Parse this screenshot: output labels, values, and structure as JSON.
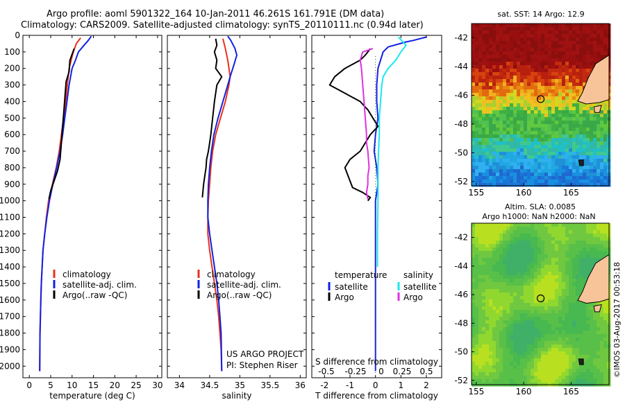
{
  "header": {
    "title": "Argo profile: aoml 5901322_164 10-Jan-2011 46.261S 161.791E (DM data)",
    "subtitle": "Climatology: CARS2009. Satellite-adjusted climatology: synTS_20110111.nc (0.94d later)"
  },
  "colors": {
    "climatology": "#e8301e",
    "satellite": "#1020e0",
    "argo": "#000000",
    "sat_salinity": "#18e8f0",
    "argo_salinity": "#e030e0"
  },
  "chart_data": [
    {
      "type": "line",
      "name": "temperature profile",
      "xlabel": "temperature (deg C)",
      "ylabel": "",
      "xlim": [
        -1.5,
        31
      ],
      "ylim": [
        2070,
        0
      ],
      "xticks": [
        0,
        5,
        10,
        15,
        20,
        25,
        30
      ],
      "yticks": [
        0,
        100,
        200,
        300,
        400,
        500,
        600,
        700,
        800,
        900,
        1000,
        1100,
        1200,
        1300,
        1400,
        1500,
        1600,
        1700,
        1800,
        1900,
        2000
      ],
      "legend": [
        "climatology",
        "satellite-adj. clim.",
        "Argo(..raw -QC)"
      ],
      "series": [
        {
          "name": "climatology",
          "color": "#e8301e",
          "x": [
            12,
            11,
            10.3,
            9.8,
            9.3,
            8.9,
            8.5,
            8,
            7.5,
            7,
            6.3,
            5.4,
            4.5,
            4,
            3.6,
            3.2,
            3,
            2.8,
            2.7,
            2.6,
            2.5,
            2.4
          ],
          "y": [
            15,
            50,
            100,
            150,
            200,
            300,
            400,
            500,
            600,
            700,
            800,
            900,
            1000,
            1100,
            1200,
            1300,
            1400,
            1500,
            1600,
            1700,
            1800,
            2030
          ]
        },
        {
          "name": "satellite-adj. clim.",
          "color": "#1020e0",
          "x": [
            14.5,
            13.8,
            12.8,
            11.5,
            10.8,
            10,
            9.3,
            8.8,
            8.3,
            7.8,
            7.2,
            6.4,
            5.5,
            4.7,
            4.1,
            3.6,
            3.2,
            3,
            2.8,
            2.7,
            2.6,
            2.5,
            2.45
          ],
          "y": [
            5,
            30,
            60,
            100,
            150,
            200,
            300,
            400,
            500,
            600,
            700,
            800,
            900,
            1000,
            1100,
            1200,
            1300,
            1400,
            1500,
            1600,
            1700,
            1800,
            2030
          ]
        },
        {
          "name": "Argo(..raw -QC)",
          "color": "#000000",
          "x": [
            10.5,
            9.5,
            9.3,
            8.6,
            8.4,
            8.1,
            7.8,
            7.5,
            7.2,
            6.6,
            5.8,
            5,
            4.6
          ],
          "y": [
            80,
            150,
            220,
            280,
            350,
            450,
            550,
            650,
            750,
            820,
            880,
            940,
            990
          ]
        }
      ]
    },
    {
      "type": "line",
      "name": "salinity profile",
      "xlabel": "salinity",
      "ylabel": "",
      "xlim": [
        33.8,
        36.1
      ],
      "ylim": [
        2070,
        0
      ],
      "xticks": [
        34,
        34.5,
        35,
        35.5,
        36
      ],
      "legend": [
        "climatology",
        "satellite-adj. clim.",
        "Argo(..raw -QC)"
      ],
      "annotation": [
        "US ARGO PROJECT",
        "PI: Stephen Riser"
      ],
      "series": [
        {
          "name": "climatology",
          "color": "#e8301e",
          "x": [
            34.72,
            34.76,
            34.8,
            34.84,
            34.82,
            34.76,
            34.68,
            34.6,
            34.55,
            34.52,
            34.5,
            34.48,
            34.47,
            34.47,
            34.5,
            34.54,
            34.58,
            34.62,
            34.65,
            34.67,
            34.69,
            34.7
          ],
          "y": [
            20,
            80,
            150,
            250,
            300,
            400,
            500,
            600,
            700,
            800,
            900,
            1000,
            1100,
            1200,
            1300,
            1400,
            1500,
            1600,
            1700,
            1800,
            1900,
            2030
          ]
        },
        {
          "name": "satellite-adj. clim.",
          "color": "#1020e0",
          "x": [
            34.8,
            34.85,
            34.92,
            34.95,
            34.9,
            34.84,
            34.8,
            34.72,
            34.64,
            34.57,
            34.53,
            34.5,
            34.48,
            34.47,
            34.47,
            34.5,
            34.54,
            34.58,
            34.62,
            34.65,
            34.67,
            34.69,
            34.7
          ],
          "y": [
            5,
            30,
            80,
            120,
            180,
            250,
            300,
            400,
            500,
            600,
            700,
            800,
            900,
            1000,
            1100,
            1200,
            1300,
            1400,
            1500,
            1600,
            1700,
            1800,
            2030
          ]
        },
        {
          "name": "Argo(..raw -QC)",
          "color": "#000000",
          "x": [
            34.6,
            34.62,
            34.58,
            34.62,
            34.6,
            34.7,
            34.62,
            34.58,
            34.55,
            34.52,
            34.5,
            34.48,
            34.45,
            34.44,
            34.42,
            34.4,
            34.38
          ],
          "y": [
            20,
            60,
            100,
            150,
            200,
            250,
            300,
            400,
            500,
            600,
            650,
            700,
            750,
            800,
            850,
            900,
            980
          ]
        }
      ]
    },
    {
      "type": "line",
      "name": "difference from climatology",
      "xlabel": "T difference from climatology",
      "xlabel2": "S difference from climatology",
      "xlim": [
        -2.5,
        2.6
      ],
      "ylim": [
        2070,
        0
      ],
      "xticks": [
        -2,
        -1,
        0,
        1,
        2
      ],
      "xticks2": [
        "-0.5",
        "-0.25",
        "0",
        "0.25",
        "0.5"
      ],
      "legend_left": [
        "temperature",
        "satellite",
        "Argo"
      ],
      "legend_right": [
        "salinity",
        "satellite",
        "Argo"
      ],
      "series": [
        {
          "name": "temperature satellite",
          "color": "#1020e0",
          "x": [
            2.0,
            1.5,
            1.2,
            0.5,
            0.3,
            0.2,
            0.1,
            0.05,
            0.05,
            0.1,
            0.0,
            -0.05,
            0.05,
            0.1,
            0.0,
            0.0,
            0.0,
            0.0,
            0.0,
            0.0
          ],
          "y": [
            10,
            30,
            40,
            70,
            100,
            150,
            200,
            300,
            400,
            500,
            600,
            700,
            800,
            900,
            1000,
            1200,
            1400,
            1600,
            1800,
            2030
          ]
        },
        {
          "name": "temperature Argo",
          "color": "#000000",
          "x": [
            -0.2,
            -0.4,
            -0.6,
            -1.2,
            -1.6,
            -1.8,
            -1.2,
            -0.6,
            -0.3,
            -0.1,
            0.1,
            -0.2,
            -0.4,
            -0.6,
            -1.0,
            -1.2,
            -1.0,
            -0.9,
            -0.5,
            -0.2,
            -0.3
          ],
          "y": [
            80,
            120,
            150,
            200,
            250,
            300,
            350,
            400,
            450,
            500,
            550,
            600,
            650,
            700,
            750,
            800,
            880,
            920,
            950,
            980,
            1000
          ]
        },
        {
          "name": "salinity satellite",
          "color": "#18e8f0",
          "x": [
            0.9,
            1.2,
            1.0,
            0.8,
            0.5,
            0.3,
            0.25,
            0.2,
            0.15,
            0.15,
            0.12,
            0.1,
            0.1,
            0.1,
            0.08,
            0.08
          ],
          "y": [
            10,
            60,
            100,
            150,
            200,
            250,
            300,
            400,
            500,
            600,
            700,
            800,
            900,
            1000,
            1200,
            1400
          ]
        },
        {
          "name": "salinity Argo",
          "color": "#e030e0",
          "x": [
            -0.1,
            -0.5,
            -0.6,
            -0.55,
            -0.5,
            -0.45,
            -0.4,
            -0.35,
            -0.35,
            -0.3,
            -0.25,
            -0.3,
            -0.3,
            -0.35,
            -0.3
          ],
          "y": [
            80,
            100,
            150,
            200,
            300,
            400,
            500,
            600,
            650,
            700,
            800,
            850,
            900,
            950,
            990
          ]
        }
      ]
    },
    {
      "type": "heatmap",
      "name": "sat. SST map",
      "title": "sat. SST: 14 Argo: 12.9",
      "xlim": [
        154.5,
        169
      ],
      "ylim": [
        -52.3,
        -41
      ],
      "xticks": [
        155,
        160,
        165
      ],
      "yticks": [
        -42,
        -44,
        -46,
        -48,
        -50,
        -52
      ],
      "marker": {
        "lon": 161.791,
        "lat": -46.261
      }
    },
    {
      "type": "heatmap",
      "name": "altimetry SLA map",
      "title": "Altim. SLA: 0.0085",
      "subtitle": "Argo h1000: NaN h2000: NaN",
      "xlim": [
        154.5,
        169
      ],
      "ylim": [
        -52.3,
        -41
      ],
      "xticks": [
        155,
        160,
        165
      ],
      "yticks": [
        -42,
        -44,
        -46,
        -48,
        -50,
        -52
      ],
      "marker": {
        "lon": 161.791,
        "lat": -46.261
      }
    }
  ],
  "footer": {
    "credit": "©IMOS 03-Aug-2017 00:53:18"
  }
}
